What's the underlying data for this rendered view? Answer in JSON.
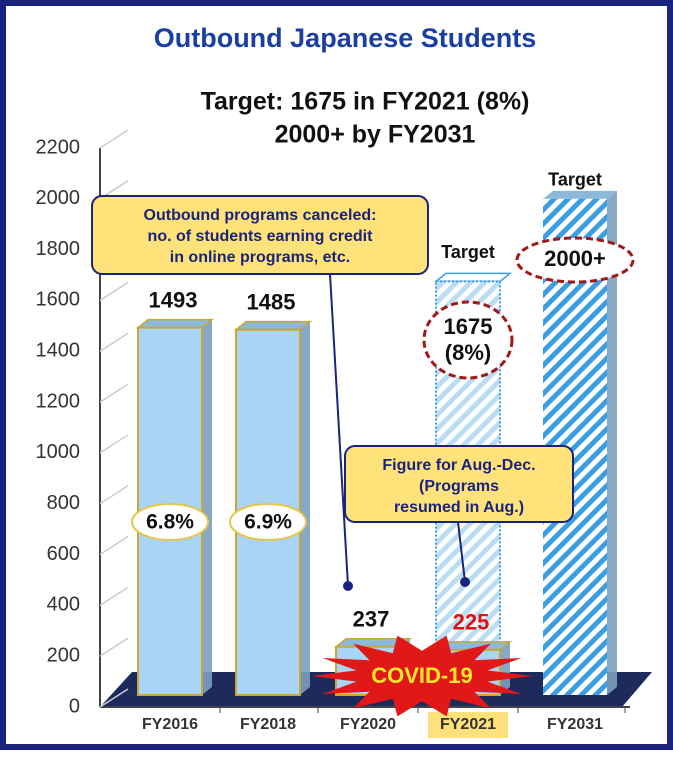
{
  "chart_data": {
    "type": "bar",
    "title": "Outbound Japanese Students",
    "subtitle": [
      "Target: 1675 in FY2021 (8%)",
      "2000+ by FY2031"
    ],
    "categories": [
      "FY2016",
      "FY2018",
      "FY2020",
      "FY2021",
      "FY2031"
    ],
    "highlight_category": 3,
    "series": [
      {
        "color": "#aad4f5",
        "values": [
          1493,
          1485,
          237,
          225,
          null
        ],
        "rate_labels": [
          "6.8%",
          "6.9%",
          null,
          null,
          null
        ]
      },
      {
        "name": "Target",
        "color": "#3a9ee0",
        "values": [
          null,
          null,
          null,
          1675,
          2000
        ],
        "value_labels": [
          null,
          null,
          null,
          "1675 (8%)",
          "2000+"
        ]
      }
    ],
    "annotations": [
      {
        "text": [
          "Outbound programs canceled:",
          "no. of students earning credit",
          "in online programs, etc."
        ]
      },
      {
        "text": [
          "Figure for Aug.-Dec.",
          "(Programs",
          "resumed in Aug.)"
        ]
      },
      {
        "text": [
          "COVID-19"
        ]
      }
    ],
    "ylim": [
      0,
      2200
    ],
    "yticks": [
      0,
      200,
      400,
      600,
      800,
      1000,
      1200,
      1400,
      1600,
      1800,
      2000,
      2200
    ]
  }
}
